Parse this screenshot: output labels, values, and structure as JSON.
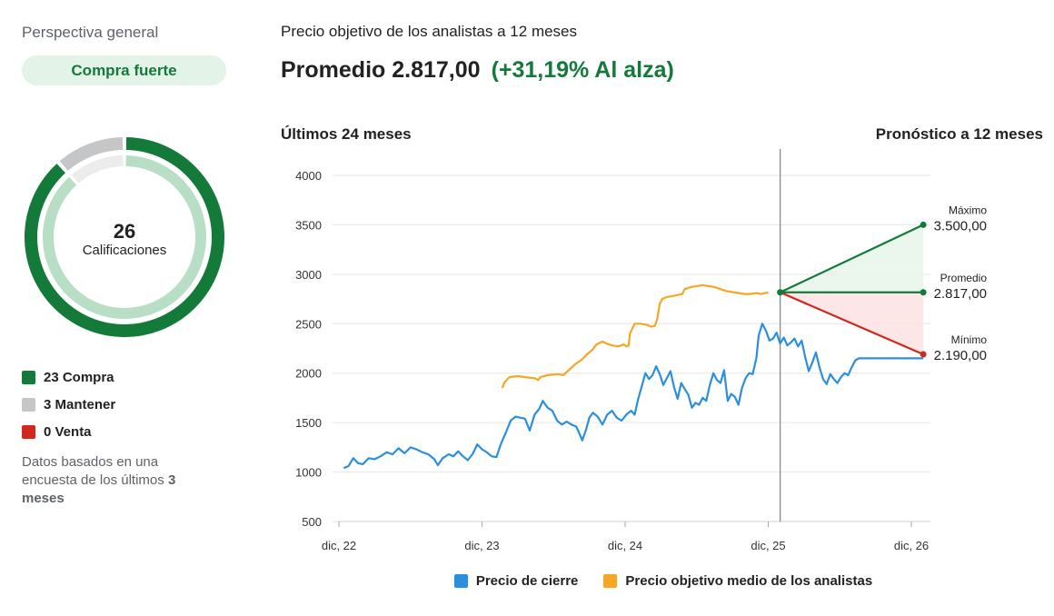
{
  "overview": {
    "title": "Perspectiva general",
    "rating": "Compra fuerte",
    "total": "26",
    "total_label": "Calificaciones",
    "breakdown": [
      {
        "label": "23 Compra",
        "count": 23,
        "color": "#137a3a"
      },
      {
        "label": "3 Mantener",
        "count": 3,
        "color": "#c4c6c8"
      },
      {
        "label": "0 Venta",
        "count": 0,
        "color": "#d0281e"
      }
    ],
    "note_prefix": "Datos basados en una encuesta de los últimos",
    "note_bold": "3 meses"
  },
  "header": {
    "title": "Precio objetivo de los analistas a 12 meses",
    "average_label": "Promedio 2.817,00",
    "upside": "(+31,19% Al alza)"
  },
  "section": {
    "past": "Últimos 24 meses",
    "forecast": "Pronóstico a 12 meses"
  },
  "colors": {
    "close": "#2b8fde",
    "target": "#f5a623",
    "high": "#137a3a",
    "low": "#d0281e",
    "grid": "#e6e6e6"
  },
  "legend": {
    "close": "Precio de cierre",
    "target": "Precio objetivo medio de los analistas"
  },
  "chart_data": {
    "type": "line",
    "x_ticks": [
      "dic, 22",
      "dic, 23",
      "dic, 24",
      "dic, 25",
      "dic, 26"
    ],
    "y_ticks": [
      "500",
      "1000",
      "1500",
      "2000",
      "2500",
      "3000",
      "3500",
      "4000"
    ],
    "ylim": [
      500,
      4000
    ],
    "x_range_months": [
      0,
      48
    ],
    "current_month": 37,
    "forecast_month": 49,
    "series": [
      {
        "name": "Precio de cierre",
        "points": [
          [
            0.4,
            1040
          ],
          [
            0.8,
            1060
          ],
          [
            1.2,
            1140
          ],
          [
            1.6,
            1090
          ],
          [
            2.0,
            1080
          ],
          [
            2.5,
            1140
          ],
          [
            3.0,
            1130
          ],
          [
            3.5,
            1160
          ],
          [
            4.0,
            1200
          ],
          [
            4.5,
            1180
          ],
          [
            5.0,
            1240
          ],
          [
            5.5,
            1190
          ],
          [
            6.0,
            1250
          ],
          [
            6.5,
            1230
          ],
          [
            7.0,
            1200
          ],
          [
            7.5,
            1180
          ],
          [
            8.0,
            1130
          ],
          [
            8.3,
            1070
          ],
          [
            8.7,
            1140
          ],
          [
            9.2,
            1180
          ],
          [
            9.6,
            1160
          ],
          [
            10.0,
            1210
          ],
          [
            10.4,
            1160
          ],
          [
            10.8,
            1120
          ],
          [
            11.2,
            1180
          ],
          [
            11.6,
            1280
          ],
          [
            12.0,
            1230
          ],
          [
            12.4,
            1200
          ],
          [
            12.8,
            1160
          ],
          [
            13.2,
            1150
          ],
          [
            13.6,
            1290
          ],
          [
            14.0,
            1400
          ],
          [
            14.4,
            1520
          ],
          [
            14.8,
            1560
          ],
          [
            15.2,
            1550
          ],
          [
            15.6,
            1540
          ],
          [
            16.0,
            1420
          ],
          [
            16.4,
            1580
          ],
          [
            16.8,
            1640
          ],
          [
            17.1,
            1720
          ],
          [
            17.5,
            1650
          ],
          [
            17.9,
            1620
          ],
          [
            18.3,
            1520
          ],
          [
            18.7,
            1480
          ],
          [
            19.1,
            1510
          ],
          [
            19.5,
            1480
          ],
          [
            19.9,
            1460
          ],
          [
            20.2,
            1380
          ],
          [
            20.4,
            1320
          ],
          [
            20.7,
            1420
          ],
          [
            21.0,
            1550
          ],
          [
            21.3,
            1600
          ],
          [
            21.7,
            1560
          ],
          [
            22.1,
            1480
          ],
          [
            22.5,
            1580
          ],
          [
            22.9,
            1620
          ],
          [
            23.3,
            1550
          ],
          [
            23.7,
            1520
          ],
          [
            24.1,
            1580
          ],
          [
            24.5,
            1620
          ],
          [
            24.8,
            1580
          ],
          [
            25.1,
            1740
          ],
          [
            25.4,
            1870
          ],
          [
            25.7,
            2000
          ],
          [
            26.0,
            1940
          ],
          [
            26.3,
            1980
          ],
          [
            26.6,
            2070
          ],
          [
            26.9,
            1990
          ],
          [
            27.2,
            1880
          ],
          [
            27.5,
            1950
          ],
          [
            27.8,
            2020
          ],
          [
            28.1,
            1860
          ],
          [
            28.4,
            1740
          ],
          [
            28.7,
            1900
          ],
          [
            29.0,
            1840
          ],
          [
            29.3,
            1780
          ],
          [
            29.6,
            1650
          ],
          [
            29.9,
            1700
          ],
          [
            30.2,
            1680
          ],
          [
            30.5,
            1750
          ],
          [
            30.8,
            1720
          ],
          [
            31.1,
            1880
          ],
          [
            31.4,
            2000
          ],
          [
            31.7,
            1930
          ],
          [
            32.0,
            1900
          ],
          [
            32.3,
            2030
          ],
          [
            32.6,
            1720
          ],
          [
            32.9,
            1790
          ],
          [
            33.2,
            1760
          ],
          [
            33.5,
            1680
          ],
          [
            33.8,
            1850
          ],
          [
            34.1,
            1950
          ],
          [
            34.4,
            2000
          ],
          [
            34.7,
            1990
          ],
          [
            35.0,
            2150
          ],
          [
            35.2,
            2380
          ],
          [
            35.5,
            2500
          ],
          [
            35.8,
            2430
          ],
          [
            36.1,
            2330
          ],
          [
            36.4,
            2350
          ],
          [
            36.7,
            2410
          ],
          [
            37.0,
            2300
          ],
          [
            37.3,
            2360
          ],
          [
            37.6,
            2280
          ],
          [
            37.9,
            2310
          ],
          [
            38.2,
            2350
          ],
          [
            38.5,
            2270
          ],
          [
            38.8,
            2330
          ],
          [
            39.1,
            2160
          ],
          [
            39.4,
            2020
          ],
          [
            39.7,
            2110
          ],
          [
            40.0,
            2210
          ],
          [
            40.3,
            2060
          ],
          [
            40.6,
            1940
          ],
          [
            40.9,
            1890
          ],
          [
            41.2,
            1990
          ],
          [
            41.5,
            1940
          ],
          [
            41.8,
            1900
          ],
          [
            42.1,
            1960
          ],
          [
            42.4,
            2000
          ],
          [
            42.7,
            1980
          ],
          [
            43.0,
            2060
          ],
          [
            43.3,
            2130
          ],
          [
            43.6,
            2150
          ],
          [
            43.7,
            2150
          ],
          [
            49.0,
            2150
          ]
        ]
      },
      {
        "name": "Precio objetivo medio de los analistas",
        "points": [
          [
            13.7,
            1850
          ],
          [
            13.9,
            1910
          ],
          [
            14.3,
            1960
          ],
          [
            15.0,
            1970
          ],
          [
            15.6,
            1960
          ],
          [
            16.4,
            1950
          ],
          [
            16.7,
            1930
          ],
          [
            16.9,
            1960
          ],
          [
            17.5,
            1980
          ],
          [
            18.4,
            1990
          ],
          [
            18.8,
            1980
          ],
          [
            19.0,
            2000
          ],
          [
            19.8,
            2090
          ],
          [
            20.4,
            2140
          ],
          [
            20.8,
            2190
          ],
          [
            21.2,
            2230
          ],
          [
            21.6,
            2290
          ],
          [
            22.1,
            2320
          ],
          [
            22.4,
            2300
          ],
          [
            22.9,
            2280
          ],
          [
            23.4,
            2270
          ],
          [
            23.9,
            2290
          ],
          [
            24.1,
            2270
          ],
          [
            24.3,
            2280
          ],
          [
            24.4,
            2400
          ],
          [
            24.6,
            2450
          ],
          [
            24.8,
            2500
          ],
          [
            25.3,
            2500
          ],
          [
            25.8,
            2490
          ],
          [
            26.2,
            2470
          ],
          [
            26.5,
            2480
          ],
          [
            26.7,
            2550
          ],
          [
            26.9,
            2700
          ],
          [
            27.1,
            2750
          ],
          [
            27.5,
            2770
          ],
          [
            28.0,
            2780
          ],
          [
            28.4,
            2790
          ],
          [
            28.8,
            2800
          ],
          [
            29.0,
            2850
          ],
          [
            29.5,
            2870
          ],
          [
            30.0,
            2880
          ],
          [
            30.5,
            2890
          ],
          [
            31.0,
            2880
          ],
          [
            31.5,
            2870
          ],
          [
            32.0,
            2850
          ],
          [
            32.5,
            2830
          ],
          [
            33.0,
            2820
          ],
          [
            33.5,
            2810
          ],
          [
            34.0,
            2800
          ],
          [
            34.5,
            2800
          ],
          [
            35.0,
            2810
          ],
          [
            35.4,
            2800
          ],
          [
            36.0,
            2817
          ]
        ]
      }
    ],
    "forecast": {
      "start_value": 2817,
      "high": {
        "label": "Máximo",
        "value": 3500,
        "display": "3.500,00"
      },
      "average": {
        "label": "Promedio",
        "value": 2817,
        "display": "2.817,00"
      },
      "low": {
        "label": "Mínimo",
        "value": 2190,
        "display": "2.190,00"
      }
    }
  }
}
